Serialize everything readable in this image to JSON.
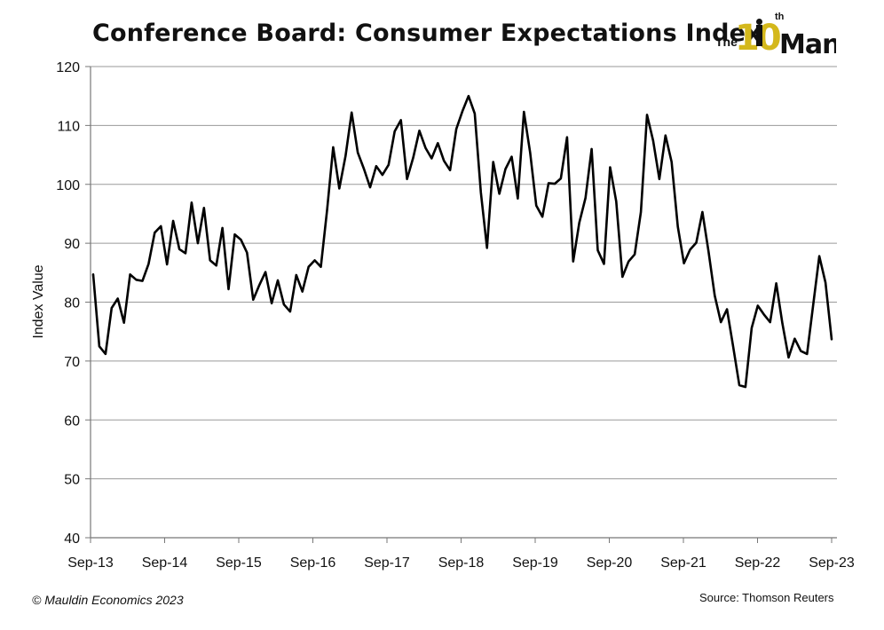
{
  "chart_data": {
    "type": "line",
    "title": "Conference Board: Consumer Expectations Index",
    "xlabel": "",
    "ylabel": "Index Value",
    "ylim": [
      40,
      120
    ],
    "yticks": [
      40,
      50,
      60,
      70,
      80,
      90,
      100,
      110,
      120
    ],
    "xticks": [
      "Sep-13",
      "Sep-14",
      "Sep-15",
      "Sep-16",
      "Sep-17",
      "Sep-18",
      "Sep-19",
      "Sep-20",
      "Sep-21",
      "Sep-22",
      "Sep-23"
    ],
    "grid": true,
    "legend": "none",
    "line_color": "#000000",
    "series": [
      {
        "x_start": "Sep-13",
        "x_end": "Sep-23",
        "values": [
          84.7,
          72.5,
          71.2,
          79.0,
          80.6,
          76.5,
          84.7,
          83.8,
          83.6,
          86.5,
          91.8,
          92.9,
          86.4,
          93.8,
          89.0,
          88.3,
          96.9,
          90.0,
          96.0,
          87.1,
          86.2,
          92.6,
          82.2,
          91.5,
          90.6,
          88.4,
          80.4,
          82.9,
          85.1,
          79.8,
          83.7,
          79.6,
          78.4,
          84.6,
          81.8,
          86.0,
          87.1,
          86.0,
          95.6,
          106.3,
          99.3,
          104.8,
          112.2,
          105.4,
          102.6,
          99.5,
          103.1,
          101.6,
          103.3,
          109.0,
          110.9,
          100.9,
          104.5,
          109.1,
          106.2,
          104.4,
          107.0,
          104.0,
          102.4,
          109.4,
          112.4,
          115.0,
          112.0,
          98.6,
          89.2,
          103.8,
          98.4,
          102.6,
          104.7,
          97.6,
          112.3,
          105.4,
          96.4,
          94.5,
          100.2,
          100.1,
          101.0,
          108.0,
          86.9,
          93.5,
          97.7,
          106.0,
          88.8,
          86.5,
          102.9,
          97.1,
          84.3,
          86.9,
          88.1,
          95.3,
          111.8,
          107.4,
          100.9,
          108.3,
          103.8,
          92.8,
          86.6,
          88.9,
          90.1,
          95.3,
          88.6,
          81.1,
          76.6,
          78.8,
          72.4,
          65.9,
          65.6,
          75.6,
          79.4,
          77.9,
          76.6,
          83.2,
          76.4,
          70.6,
          73.8,
          71.7,
          71.2,
          79.5,
          87.8,
          83.3,
          73.7
        ]
      }
    ]
  },
  "logo": {
    "word_the": "The",
    "word_ten": "10",
    "word_th": "th",
    "word_man": "Man",
    "gold": "#d4b81c",
    "dark": "#111111"
  },
  "footer": {
    "copyright": "© Mauldin Economics 2023",
    "source": "Source: Thomson Reuters"
  }
}
